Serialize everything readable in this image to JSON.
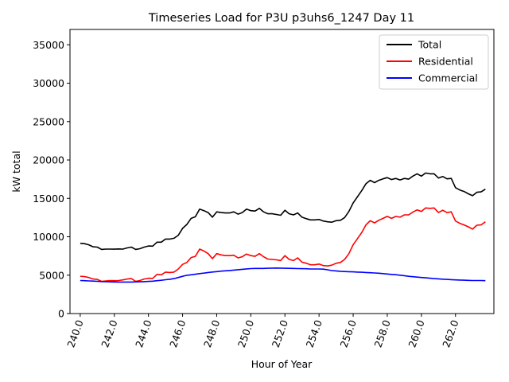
{
  "chart_data": {
    "type": "line",
    "title": "Timeseries Load for P3U p3uhs6_1247  Day 11",
    "xlabel": "Hour of Year",
    "ylabel": "kW total",
    "xlim": [
      239.4,
      264.25
    ],
    "ylim": [
      0,
      37000
    ],
    "x_ticks": [
      240,
      242,
      244,
      246,
      248,
      250,
      252,
      254,
      256,
      258,
      260,
      262
    ],
    "x_tick_labels": [
      "240.0",
      "242.0",
      "244.0",
      "246.0",
      "248.0",
      "250.0",
      "252.0",
      "254.0",
      "256.0",
      "258.0",
      "260.0",
      "262.0"
    ],
    "y_ticks": [
      0,
      5000,
      10000,
      15000,
      20000,
      25000,
      30000,
      35000
    ],
    "y_tick_labels": [
      "0",
      "5000",
      "10000",
      "15000",
      "20000",
      "25000",
      "30000",
      "35000"
    ],
    "grid": false,
    "legend_position": "top-right",
    "x_start": 240.0,
    "x_step": 0.25,
    "series": [
      {
        "name": "Total",
        "color": "#000000",
        "values": [
          9150,
          9100,
          8950,
          8700,
          8650,
          8350,
          8400,
          8400,
          8380,
          8420,
          8400,
          8550,
          8650,
          8350,
          8450,
          8650,
          8800,
          8780,
          9300,
          9300,
          9700,
          9700,
          9800,
          10200,
          11100,
          11600,
          12400,
          12600,
          13600,
          13400,
          13150,
          12550,
          13250,
          13150,
          13100,
          13100,
          13250,
          12950,
          13150,
          13600,
          13400,
          13350,
          13700,
          13250,
          13000,
          13000,
          12900,
          12800,
          13450,
          13000,
          12850,
          13100,
          12550,
          12350,
          12200,
          12200,
          12250,
          12050,
          11950,
          11900,
          12100,
          12150,
          12500,
          13300,
          14400,
          15200,
          16000,
          16900,
          17350,
          17050,
          17350,
          17550,
          17700,
          17450,
          17600,
          17400,
          17600,
          17500,
          17900,
          18200,
          17900,
          18300,
          18200,
          18200,
          17650,
          17850,
          17550,
          17600,
          16400,
          16100,
          15900,
          15600,
          15350,
          15800,
          15850,
          16200
        ]
      },
      {
        "name": "Residential",
        "color": "#ff0000",
        "values": [
          4850,
          4820,
          4700,
          4500,
          4450,
          4200,
          4250,
          4300,
          4280,
          4300,
          4380,
          4500,
          4550,
          4200,
          4300,
          4500,
          4600,
          4580,
          5100,
          5050,
          5400,
          5350,
          5400,
          5800,
          6400,
          6650,
          7300,
          7450,
          8400,
          8150,
          7800,
          7150,
          7800,
          7650,
          7550,
          7550,
          7600,
          7250,
          7400,
          7750,
          7550,
          7450,
          7800,
          7400,
          7100,
          7050,
          7000,
          6900,
          7550,
          7050,
          6900,
          7250,
          6700,
          6550,
          6350,
          6350,
          6450,
          6250,
          6200,
          6300,
          6550,
          6650,
          7050,
          7800,
          8950,
          9750,
          10550,
          11550,
          12100,
          11800,
          12150,
          12400,
          12650,
          12400,
          12650,
          12550,
          12850,
          12850,
          13200,
          13500,
          13300,
          13750,
          13700,
          13750,
          13150,
          13450,
          13150,
          13250,
          12050,
          11750,
          11550,
          11300,
          11000,
          11500,
          11550,
          11950
        ]
      },
      {
        "name": "Commercial",
        "color": "#0000ff",
        "values": [
          4300,
          4280,
          4250,
          4230,
          4200,
          4170,
          4150,
          4130,
          4110,
          4100,
          4100,
          4100,
          4100,
          4120,
          4140,
          4160,
          4190,
          4220,
          4280,
          4330,
          4400,
          4470,
          4550,
          4700,
          4850,
          4980,
          5050,
          5120,
          5200,
          5270,
          5350,
          5410,
          5460,
          5520,
          5570,
          5610,
          5660,
          5710,
          5760,
          5810,
          5860,
          5880,
          5880,
          5880,
          5900,
          5920,
          5930,
          5920,
          5900,
          5890,
          5880,
          5860,
          5850,
          5830,
          5800,
          5800,
          5800,
          5780,
          5700,
          5600,
          5550,
          5500,
          5470,
          5450,
          5430,
          5400,
          5380,
          5350,
          5320,
          5290,
          5250,
          5200,
          5150,
          5100,
          5060,
          5000,
          4930,
          4850,
          4800,
          4750,
          4700,
          4650,
          4600,
          4550,
          4520,
          4480,
          4450,
          4420,
          4380,
          4360,
          4340,
          4320,
          4300,
          4300,
          4300,
          4280
        ]
      }
    ]
  }
}
